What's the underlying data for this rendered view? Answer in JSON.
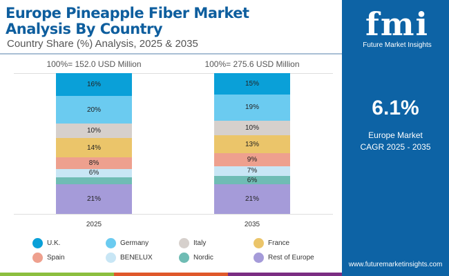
{
  "header": {
    "title_line1": "Europe Pineapple Fiber Market",
    "title_line2": "Analysis By Country",
    "subtitle": "Country Share (%) Analysis, 2025 & 2035"
  },
  "panel": {
    "logo_text": "fmi",
    "logo_name": "Future Market Insights",
    "cagr_value": "6.1%",
    "cagr_label_line1": "Europe Market",
    "cagr_label_line2": "CAGR 2025 - 2035",
    "url": "www.futuremarketinsights.com"
  },
  "chart_data": {
    "type": "bar",
    "stacked": true,
    "categories": [
      "2025",
      "2035"
    ],
    "totals": [
      "100%= 152.0 USD Million",
      "100%= 275.6 USD Million"
    ],
    "series": [
      {
        "name": "U.K.",
        "color": "#0aa0d8",
        "values": [
          16,
          15
        ]
      },
      {
        "name": "Germany",
        "color": "#6bcbf0",
        "values": [
          20,
          19
        ]
      },
      {
        "name": "Italy",
        "color": "#d6d0cc",
        "values": [
          10,
          10
        ]
      },
      {
        "name": "France",
        "color": "#ebc56a",
        "values": [
          14,
          13
        ]
      },
      {
        "name": "Spain",
        "color": "#eea08e",
        "values": [
          8,
          9
        ]
      },
      {
        "name": "BENELUX",
        "color": "#c8e6f5",
        "values": [
          6,
          7
        ]
      },
      {
        "name": "Nordic",
        "color": "#6fbcb4",
        "values": [
          5,
          6
        ]
      },
      {
        "name": "Rest of Europe",
        "color": "#a59bd9",
        "values": [
          21,
          21
        ]
      }
    ],
    "unlabeled": [
      [
        false,
        false
      ],
      [
        false,
        false
      ],
      [
        false,
        false
      ],
      [
        false,
        false
      ],
      [
        false,
        false
      ],
      [
        false,
        false
      ],
      [
        true,
        false
      ],
      [
        false,
        false
      ]
    ],
    "ylim": [
      0,
      100
    ],
    "legend": "bottom"
  }
}
